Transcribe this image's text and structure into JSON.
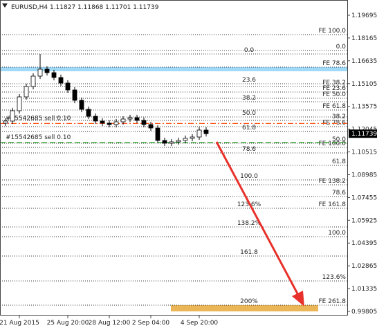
{
  "chart_data": {
    "type": "candlestick",
    "title": "EURUSD,H4 1.11827 1.11868 1.11701 1.11739",
    "categories": [
      null,
      null,
      "21 Aug 2015",
      null,
      null,
      null,
      null,
      null,
      null,
      "25 Aug 20:00",
      null,
      null,
      null,
      null,
      null,
      "28 Aug 12:00",
      null,
      null,
      null,
      null,
      null,
      "2 Sep 04:00",
      null,
      null,
      null,
      null,
      null,
      null,
      "4 Sep 20:00",
      null
    ],
    "open": [
      1.12446,
      1.12585,
      1.13282,
      1.14211,
      1.14908,
      1.15605,
      1.1607,
      1.15838,
      1.15512,
      1.15141,
      1.14676,
      1.13979,
      1.13375,
      1.1291,
      1.12585,
      1.12446,
      1.12352,
      1.12538,
      1.12724,
      1.12817,
      1.12631,
      1.12352,
      1.1212,
      1.11284,
      1.11098,
      1.11191,
      1.11284,
      1.11423,
      1.11516,
      1.11981
    ],
    "high": [
      1.12775,
      1.13472,
      1.14401,
      1.15098,
      1.15795,
      1.17092,
      1.1626,
      1.16028,
      1.15702,
      1.15331,
      1.14866,
      1.14169,
      1.13565,
      1.131,
      1.12775,
      1.12636,
      1.12728,
      1.12914,
      1.13007,
      1.13007,
      1.12821,
      1.12542,
      1.1231,
      1.11474,
      1.11381,
      1.11474,
      1.11613,
      1.11706,
      1.12171,
      1.12171
    ],
    "low": [
      1.12256,
      1.12395,
      1.13092,
      1.14021,
      1.14718,
      1.15415,
      1.15648,
      1.15322,
      1.14951,
      1.14486,
      1.13789,
      1.13185,
      1.1272,
      1.12395,
      1.12256,
      1.12162,
      1.12162,
      1.12348,
      1.12534,
      1.12441,
      1.12162,
      1.1193,
      1.11094,
      1.10908,
      1.10908,
      1.11001,
      1.11094,
      1.11233,
      1.11326,
      1.11549
    ],
    "close": [
      1.12585,
      1.13282,
      1.14211,
      1.14908,
      1.15605,
      1.1607,
      1.15838,
      1.15512,
      1.15141,
      1.14676,
      1.13979,
      1.13375,
      1.1291,
      1.12585,
      1.12446,
      1.12352,
      1.12538,
      1.12724,
      1.12817,
      1.12631,
      1.12352,
      1.1212,
      1.11284,
      1.11098,
      1.11191,
      1.11284,
      1.11423,
      1.11516,
      1.11981,
      1.11739
    ],
    "ylim": [
      0.99526,
      1.20717
    ],
    "yticks": [
      1.19695,
      1.18165,
      1.16635,
      1.15105,
      1.13575,
      1.12045,
      1.10515,
      1.08985,
      1.07455,
      1.05925,
      1.04395,
      1.02865,
      1.01335,
      0.99805
    ],
    "last_price": 1.11739,
    "levels_left": [
      {
        "price": 1.17092,
        "text": "0.0"
      },
      {
        "price": 1.15094,
        "text": "23.6"
      },
      {
        "price": 1.13886,
        "text": "38.2"
      },
      {
        "price": 1.12864,
        "text": "50.0"
      },
      {
        "price": 1.11888,
        "text": "61.8"
      },
      {
        "price": 1.10447,
        "text": "78.6"
      },
      {
        "price": 1.08635,
        "text": "100.0"
      },
      {
        "price": 1.0673,
        "text": "123.6%"
      },
      {
        "price": 1.05475,
        "text": "138.2%"
      },
      {
        "price": 1.03523,
        "text": "161.8"
      },
      {
        "price": 1.00224,
        "text": "200%"
      }
    ],
    "levels_right": [
      {
        "price": 1.18394,
        "text": "FE 100.0"
      },
      {
        "price": 1.17325,
        "text": "0.0"
      },
      {
        "price": 1.16209,
        "text": "FE 78.6"
      },
      {
        "price": 1.14908,
        "text": "FE 38.2"
      },
      {
        "price": 1.14536,
        "text": "FE 23.6"
      },
      {
        "price": 1.14118,
        "text": "FE 50.0"
      },
      {
        "price": 1.13328,
        "text": "FE 61.8"
      },
      {
        "price": 1.12631,
        "text": "38.2"
      },
      {
        "price": 1.12213,
        "text": "FE 78.6"
      },
      {
        "price": 1.11098,
        "text": "50.0"
      },
      {
        "price": 1.10818,
        "text": "FE 100.0"
      },
      {
        "price": 1.09611,
        "text": "61.8"
      },
      {
        "price": 1.0831,
        "text": "FE 138.2"
      },
      {
        "price": 1.0752,
        "text": "78.6"
      },
      {
        "price": 1.0673,
        "text": "FE 161.8"
      },
      {
        "price": 1.04824,
        "text": "100.0"
      },
      {
        "price": 1.0185,
        "text": "123.6%"
      },
      {
        "price": 1.00224,
        "text": "FE 261.8"
      }
    ],
    "orders": [
      {
        "price": 1.12427,
        "text": "#15542685 sell 0.10",
        "color": "#ff5a1f"
      },
      {
        "price": 1.11144,
        "text": "#15542685 sell 0.10",
        "color": "#1a9c1a"
      }
    ],
    "zones": [
      {
        "top": 1.16209,
        "bottom": 1.1593,
        "color": "#8fd3f7"
      },
      {
        "top": 1.00224,
        "bottom": 0.99805,
        "color": "#e6a93a"
      }
    ]
  }
}
